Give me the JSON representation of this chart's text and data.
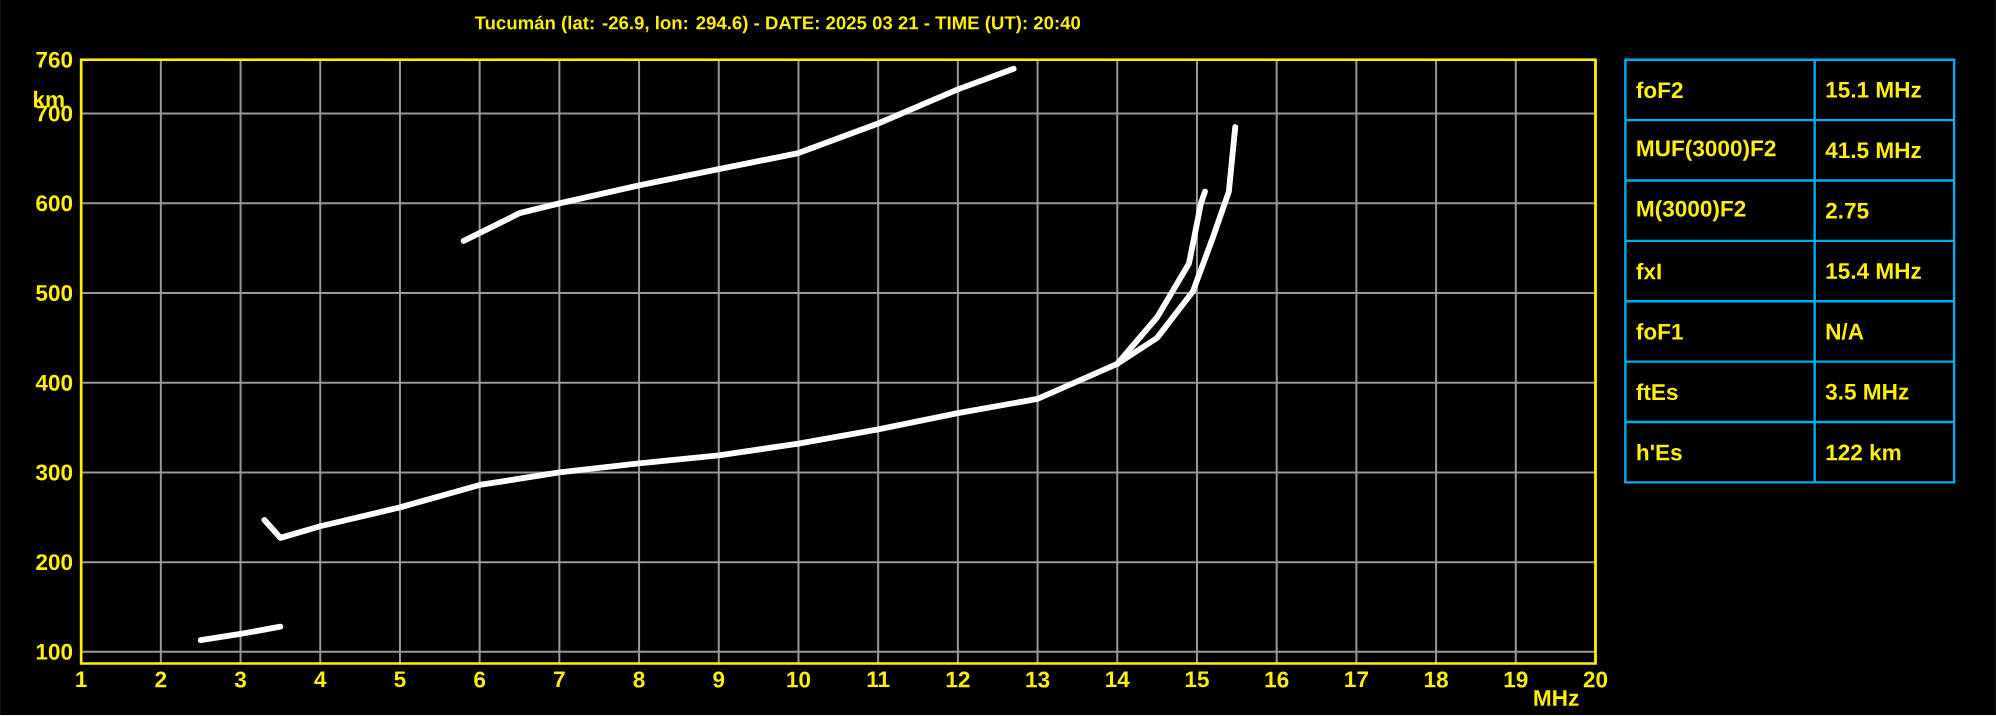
{
  "chart_data": [
    {
      "type": "line",
      "title": "Tucumán (lat: -26.9, lon: 294.6) - DATE: 2025 03 21 - TIME (UT): 20:40",
      "xlabel": "MHz",
      "ylabel": "km",
      "xlim": [
        1,
        20
      ],
      "ylim": [
        87,
        760
      ],
      "xticks": [
        1,
        2,
        3,
        4,
        5,
        6,
        7,
        8,
        9,
        10,
        11,
        12,
        13,
        14,
        15,
        16,
        17,
        18,
        19,
        20
      ],
      "yticks": [
        100,
        200,
        300,
        400,
        500,
        600,
        700,
        760
      ],
      "grid": true,
      "marker": "none",
      "line_style": "solid",
      "series": [
        {
          "color": "#ffffff",
          "x": [
            2.5,
            3.0,
            3.5
          ],
          "values": [
            113,
            120,
            128
          ]
        },
        {
          "color": "#ffffff",
          "x": [
            3.3,
            3.5,
            4,
            5,
            6,
            7,
            8,
            9,
            10,
            11,
            12,
            13,
            14,
            14.5,
            14.9,
            15.05,
            15.1
          ],
          "values": [
            247,
            227,
            240,
            261,
            286,
            300,
            310,
            319,
            332,
            348,
            366,
            382,
            421,
            473,
            533,
            600,
            613
          ]
        },
        {
          "color": "#ffffff",
          "x": [
            14,
            14.5,
            14.95,
            15.2,
            15.4,
            15.48
          ],
          "values": [
            421,
            450,
            502,
            562,
            613,
            685
          ]
        },
        {
          "color": "#ffffff",
          "x": [
            5.8,
            6.5,
            7,
            8,
            9,
            10,
            11,
            12,
            12.7
          ],
          "values": [
            558,
            589,
            600,
            620,
            638,
            656,
            689,
            727,
            750
          ]
        }
      ]
    },
    {
      "type": "other",
      "categories": [
        "foF2",
        "MUF(3000)F2",
        "M(3000)F2",
        "fxI",
        "foF1",
        "ftEs",
        "h'Es"
      ],
      "value_labels": [
        "15.1 MHz",
        "41.5 MHz",
        "2.75",
        "15.4 MHz",
        "N/A",
        "3.5 MHz",
        "122 km"
      ]
    }
  ]
}
